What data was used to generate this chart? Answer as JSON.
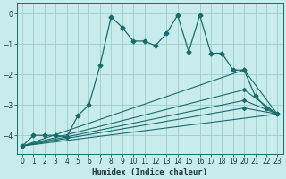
{
  "xlabel": "Humidex (Indice chaleur)",
  "bg_color": "#c8ecec",
  "grid_color": "#a0cccc",
  "line_color": "#1a6b6b",
  "xlim": [
    -0.5,
    23.5
  ],
  "ylim": [
    -4.6,
    0.35
  ],
  "yticks": [
    0,
    -1,
    -2,
    -3,
    -4
  ],
  "xticks": [
    0,
    1,
    2,
    3,
    4,
    5,
    6,
    7,
    8,
    9,
    10,
    11,
    12,
    13,
    14,
    15,
    16,
    17,
    18,
    19,
    20,
    21,
    22,
    23
  ],
  "line1_x": [
    0,
    1,
    2,
    3,
    4,
    5,
    6,
    7,
    8,
    9,
    10,
    11,
    12,
    13,
    14,
    15,
    16,
    17,
    18,
    19,
    20,
    21,
    22,
    23
  ],
  "line1_y": [
    -4.35,
    -4.0,
    -4.0,
    -4.0,
    -4.05,
    -3.35,
    -3.0,
    -1.7,
    -0.1,
    -0.45,
    -0.9,
    -0.9,
    -1.05,
    -0.65,
    -0.05,
    -1.25,
    -0.05,
    -1.3,
    -1.3,
    -1.85,
    -1.85,
    -2.7,
    -3.1,
    -3.3
  ],
  "line2_x": [
    0,
    23
  ],
  "line2_y": [
    -4.35,
    -3.3
  ],
  "line3_x": [
    0,
    20,
    23
  ],
  "line3_y": [
    -4.35,
    -1.85,
    -3.3
  ],
  "line4_x": [
    0,
    20,
    23
  ],
  "line4_y": [
    -4.35,
    -2.5,
    -3.3
  ],
  "line5_x": [
    0,
    20,
    23
  ],
  "line5_y": [
    -4.35,
    -2.85,
    -3.3
  ],
  "line6_x": [
    0,
    20,
    23
  ],
  "line6_y": [
    -4.35,
    -3.1,
    -3.3
  ]
}
